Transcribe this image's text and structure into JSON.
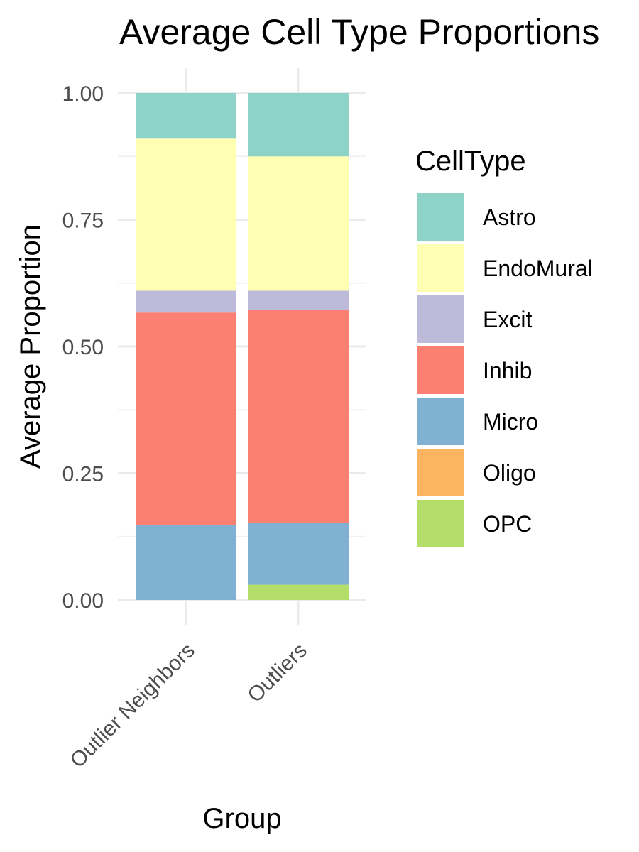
{
  "chart_data": {
    "type": "bar",
    "stacked": true,
    "title": "Average Cell Type Proportions",
    "xlabel": "Group",
    "ylabel": "Average Proportion",
    "categories": [
      "Outlier Neighbors",
      "Outliers"
    ],
    "ylim": [
      0,
      1
    ],
    "yticks": [
      "0.00",
      "0.25",
      "0.50",
      "0.75",
      "1.00"
    ],
    "ytick_values": [
      0,
      0.25,
      0.5,
      0.75,
      1
    ],
    "grid": true,
    "legend": {
      "title": "CellType",
      "position": "right"
    },
    "series": [
      {
        "name": "Astro",
        "color": "#8dd3c7",
        "values": [
          0.09,
          0.125
        ]
      },
      {
        "name": "EndoMural",
        "color": "#ffffb3",
        "values": [
          0.3,
          0.265
        ]
      },
      {
        "name": "Excit",
        "color": "#bebada",
        "values": [
          0.043,
          0.038
        ]
      },
      {
        "name": "Inhib",
        "color": "#fb8072",
        "values": [
          0.42,
          0.42
        ]
      },
      {
        "name": "Micro",
        "color": "#80b1d3",
        "values": [
          0.147,
          0.122
        ]
      },
      {
        "name": "Oligo",
        "color": "#fdb462",
        "values": [
          0,
          0
        ]
      },
      {
        "name": "OPC",
        "color": "#b3de69",
        "values": [
          0,
          0.03
        ]
      }
    ]
  }
}
